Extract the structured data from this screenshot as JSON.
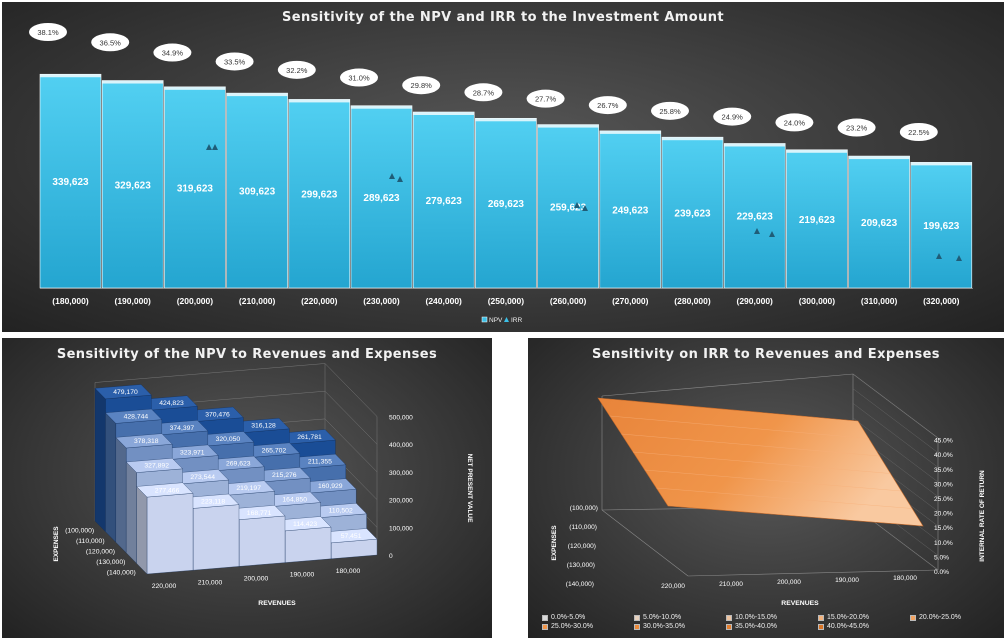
{
  "chart_data": [
    {
      "type": "bar",
      "title": "Sensitivity of the NPV and IRR to the Investment Amount",
      "categories": [
        "(180,000)",
        "(190,000)",
        "(200,000)",
        "(210,000)",
        "(220,000)",
        "(230,000)",
        "(240,000)",
        "(250,000)",
        "(260,000)",
        "(270,000)",
        "(280,000)",
        "(290,000)",
        "(300,000)",
        "(310,000)",
        "(320,000)"
      ],
      "series": [
        {
          "name": "NPV",
          "values": [
            339623,
            329623,
            319623,
            309623,
            299623,
            289623,
            279623,
            269623,
            259623,
            249623,
            239623,
            229623,
            219623,
            209623,
            199623
          ],
          "labels": [
            "339,623",
            "329,623",
            "319,623",
            "309,623",
            "299,623",
            "289,623",
            "279,623",
            "269,623",
            "259,623",
            "249,623",
            "239,623",
            "229,623",
            "219,623",
            "209,623",
            "199,623"
          ]
        },
        {
          "name": "IRR",
          "values": [
            38.1,
            36.5,
            34.9,
            33.5,
            32.2,
            31.0,
            29.8,
            28.7,
            27.7,
            26.7,
            25.8,
            24.9,
            24.0,
            23.2,
            22.5
          ],
          "labels": [
            "38.1%",
            "36.5%",
            "34.9%",
            "33.5%",
            "32.2%",
            "31.0%",
            "29.8%",
            "28.7%",
            "27.7%",
            "26.7%",
            "25.8%",
            "24.9%",
            "24.0%",
            "23.2%",
            "22.5%"
          ]
        }
      ],
      "legend": [
        "NPV",
        "IRR"
      ],
      "legend_position": "bottom",
      "colors": {
        "bar": "#3bbfe6",
        "marker": "#1f5d78"
      }
    },
    {
      "type": "bar3d",
      "title": "Sensitivity of the NPV to Revenues and Expenses",
      "x_label": "REVENUES",
      "y_label": "EXPENSES",
      "z_label": "NET PRESENT VALUE",
      "x_categories": [
        "220,000",
        "210,000",
        "200,000",
        "190,000",
        "180,000"
      ],
      "y_categories": [
        "(100,000)",
        "(110,000)",
        "(120,000)",
        "(130,000)",
        "(140,000)"
      ],
      "z_ticks": [
        "0",
        "100,000",
        "200,000",
        "300,000",
        "400,000",
        "500,000"
      ],
      "values": [
        [
          479170,
          424823,
          370476,
          316128,
          261781
        ],
        [
          428744,
          374397,
          320050,
          265702,
          211355
        ],
        [
          378318,
          323971,
          269623,
          215276,
          160929
        ],
        [
          327892,
          273544,
          219197,
          164850,
          110502
        ],
        [
          277466,
          223118,
          168771,
          114423,
          57451
        ]
      ],
      "labels": [
        [
          "479,170",
          "424,823",
          "370,476",
          "316,128",
          "261,781"
        ],
        [
          "428,744",
          "374,397",
          "320,050",
          "265,702",
          "211,355"
        ],
        [
          "378,318",
          "323,971",
          "269,623",
          "215,276",
          "160,929"
        ],
        [
          "327,892",
          "273,544",
          "219,197",
          "164,850",
          "110,502"
        ],
        [
          "277,466",
          "223,118",
          "168,771",
          "114,423",
          "57,451"
        ]
      ],
      "colors": {
        "dark": "#1a4d96",
        "light": "#c9d3ee"
      }
    },
    {
      "type": "surface",
      "title": "Sensitivity on IRR to Revenues and Expenses",
      "x_label": "REVENUES",
      "y_label": "EXPENSES",
      "z_label": "INTERNAL RATE OF RETURN",
      "x_categories": [
        "220,000",
        "210,000",
        "200,000",
        "190,000",
        "180,000"
      ],
      "y_categories": [
        "(100,000)",
        "(110,000)",
        "(120,000)",
        "(130,000)",
        "(140,000)"
      ],
      "z_ticks": [
        "0.0%",
        "5.0%",
        "10.0%",
        "15.0%",
        "20.0%",
        "25.0%",
        "30.0%",
        "35.0%",
        "40.0%",
        "45.0%"
      ],
      "legend": [
        "0.0%-5.0%",
        "5.0%-10.0%",
        "10.0%-15.0%",
        "15.0%-20.0%",
        "20.0%-25.0%",
        "25.0%-30.0%",
        "30.0%-35.0%",
        "35.0%-40.0%",
        "40.0%-45.0%"
      ],
      "legend_colors": [
        "#d9d9d9",
        "#e6d0bd",
        "#edc3a0",
        "#f2b37e",
        "#f3a462",
        "#f0954a",
        "#ec8a3a",
        "#e47f30",
        "#d97426"
      ],
      "legend_position": "bottom",
      "colors": {
        "surface": "#f0954a"
      }
    }
  ]
}
